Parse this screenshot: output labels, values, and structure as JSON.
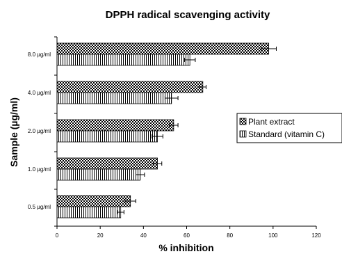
{
  "chart_data": {
    "type": "bar",
    "orientation": "horizontal",
    "title": "DPPH radical scavenging activity",
    "xlabel": "% inhibition",
    "ylabel": "Sample (µg/ml)",
    "xlim": [
      0,
      120
    ],
    "x_ticks": [
      0,
      20,
      40,
      60,
      80,
      100,
      120
    ],
    "categories": [
      "8.0 µg/ml",
      "4.0 µg/ml",
      "2.0 µg/ml",
      "1.0 µg/ml",
      "0.5 µg/ml"
    ],
    "series": [
      {
        "name": "Plant extract",
        "pattern": "checkerboard",
        "values": [
          98,
          67.5,
          54,
          46.5,
          34
        ],
        "errors": [
          3.5,
          1.5,
          2,
          2,
          2.5
        ]
      },
      {
        "name": "Standard (vitamin C)",
        "pattern": "vertical-stripes",
        "values": [
          61.5,
          53,
          46.5,
          38.5,
          29.5
        ],
        "errors": [
          2.5,
          3,
          2.5,
          2,
          1.5
        ]
      }
    ],
    "grid": false,
    "legend_position": "right"
  }
}
